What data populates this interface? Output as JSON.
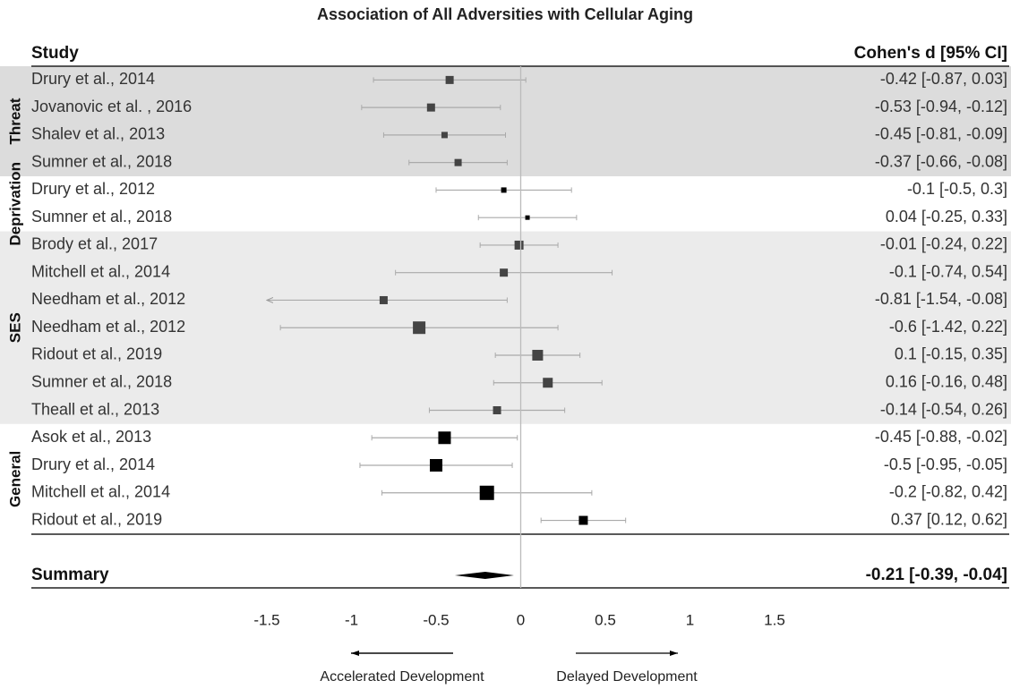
{
  "chart_data": {
    "type": "forest",
    "title": "Association of All Adversities with Cellular Aging",
    "column_headers": {
      "study": "Study",
      "effect": "Cohen's d [95% CI]"
    },
    "xlim": [
      -1.5,
      1.5
    ],
    "xticks": [
      -1.5,
      -1,
      -0.5,
      0,
      0.5,
      1,
      1.5
    ],
    "groups": [
      {
        "name": "Threat",
        "background": "#dcdcdc",
        "color": "#444444",
        "studies": [
          "Drury et al., 2014",
          "Jovanovic et al. , 2016",
          "Shalev et al., 2013",
          "Sumner et al., 2018"
        ],
        "values": [
          -0.42,
          -0.53,
          -0.45,
          -0.37
        ],
        "lower": [
          -0.87,
          -0.94,
          -0.81,
          -0.66
        ],
        "upper": [
          0.03,
          -0.12,
          -0.09,
          -0.08
        ],
        "value_labels": [
          "-0.42 [-0.87, 0.03]",
          "-0.53 [-0.94, -0.12]",
          "-0.45 [-0.81, -0.09]",
          "-0.37 [-0.66, -0.08]"
        ],
        "sizes": [
          9,
          9,
          7,
          8
        ]
      },
      {
        "name": "Deprivation",
        "background": "#ffffff",
        "color": "#000000",
        "studies": [
          "Drury et al., 2012",
          "Sumner et al., 2018"
        ],
        "values": [
          -0.1,
          0.04
        ],
        "lower": [
          -0.5,
          -0.25
        ],
        "upper": [
          0.3,
          0.33
        ],
        "value_labels": [
          "-0.1 [-0.5, 0.3]",
          "0.04 [-0.25, 0.33]"
        ],
        "sizes": [
          6,
          5
        ]
      },
      {
        "name": "SES",
        "background": "#ebebeb",
        "color": "#444444",
        "studies": [
          "Brody et al., 2017",
          "Mitchell et al., 2014",
          "Needham et al., 2012",
          "Needham et al., 2012",
          "Ridout et al., 2019",
          "Sumner et al., 2018",
          "Theall et al., 2013"
        ],
        "values": [
          -0.01,
          -0.1,
          -0.81,
          -0.6,
          0.1,
          0.16,
          -0.14
        ],
        "lower": [
          -0.24,
          -0.74,
          -1.54,
          -1.42,
          -0.15,
          -0.16,
          -0.54
        ],
        "upper": [
          0.22,
          0.54,
          -0.08,
          0.22,
          0.35,
          0.48,
          0.26
        ],
        "value_labels": [
          "-0.01 [-0.24, 0.22]",
          "-0.1 [-0.74, 0.54]",
          "-0.81 [-1.54, -0.08]",
          "-0.6 [-1.42, 0.22]",
          "0.1 [-0.15, 0.35]",
          "0.16 [-0.16, 0.48]",
          "-0.14 [-0.54, 0.26]"
        ],
        "sizes": [
          10,
          9,
          9,
          14,
          12,
          11,
          9
        ]
      },
      {
        "name": "General",
        "background": "#ffffff",
        "color": "#000000",
        "studies": [
          "Asok et al., 2013",
          "Drury et al., 2014",
          "Mitchell et al., 2014",
          "Ridout et al., 2019"
        ],
        "values": [
          -0.45,
          -0.5,
          -0.2,
          0.37
        ],
        "lower": [
          -0.88,
          -0.95,
          -0.82,
          0.12
        ],
        "upper": [
          -0.02,
          -0.05,
          0.42,
          0.62
        ],
        "value_labels": [
          "-0.45 [-0.88, -0.02]",
          "-0.5 [-0.95, -0.05]",
          "-0.2 [-0.82, 0.42]",
          "0.37 [0.12, 0.62]"
        ],
        "sizes": [
          14,
          14,
          16,
          10
        ]
      }
    ],
    "summary": {
      "label": "Summary",
      "value": -0.21,
      "lower": -0.39,
      "upper": -0.04,
      "value_label": "-0.21 [-0.39, -0.04]"
    },
    "direction_labels": {
      "left": "Accelerated Development",
      "right": "Delayed Development"
    }
  }
}
